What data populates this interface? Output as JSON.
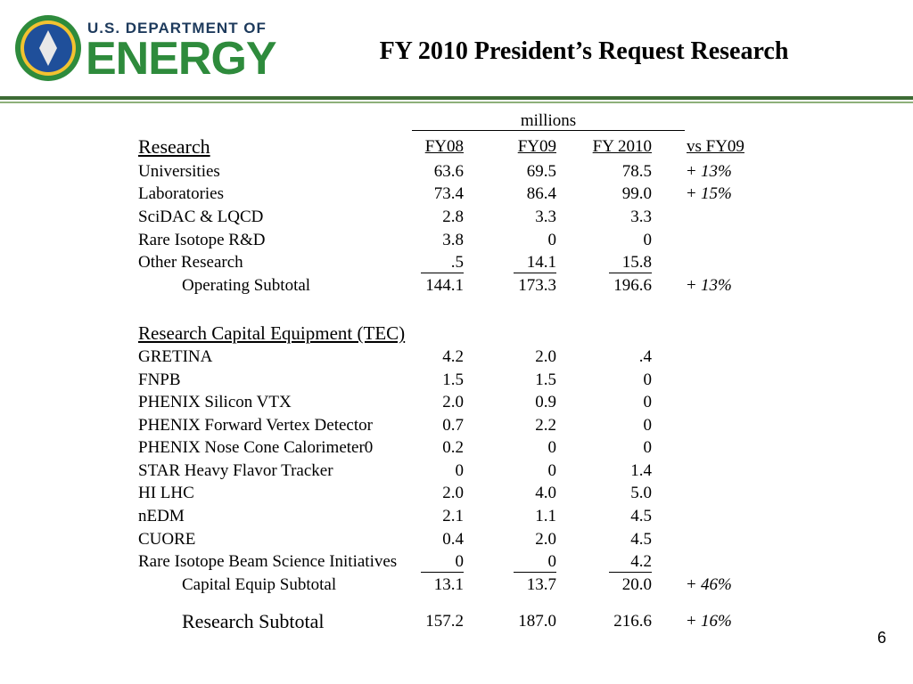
{
  "header": {
    "logo_top": "U.S. DEPARTMENT OF",
    "logo_main": "ENERGY",
    "title": "FY 2010 President’s Request Research"
  },
  "table": {
    "units": "millions",
    "columns": [
      "FY08",
      "FY09",
      "FY 2010",
      "vs FY09"
    ],
    "sections": [
      {
        "heading": "Research",
        "rows": [
          {
            "label": "Universities",
            "values": [
              "63.6",
              "69.5",
              "78.5"
            ],
            "change": {
              "sign": "+",
              "value": "13%"
            }
          },
          {
            "label": "Laboratories",
            "values": [
              "73.4",
              "86.4",
              "99.0"
            ],
            "change": {
              "sign": "+",
              "value": "15%"
            }
          },
          {
            "label": "SciDAC & LQCD",
            "values": [
              "2.8",
              "3.3",
              "3.3"
            ]
          },
          {
            "label": "Rare Isotope R&D",
            "values": [
              "3.8",
              "0",
              "0"
            ]
          },
          {
            "label": "Other Research",
            "values": [
              ".5",
              "14.1",
              "15.8"
            ]
          }
        ],
        "subtotal": {
          "label": "Operating Subtotal",
          "values": [
            "144.1",
            "173.3",
            "196.6"
          ],
          "change": {
            "sign": "+",
            "value": "13%"
          }
        }
      },
      {
        "heading": "Research Capital Equipment (TEC)",
        "rows": [
          {
            "label": "GRETINA",
            "values": [
              "4.2",
              "2.0",
              ".4"
            ]
          },
          {
            "label": "FNPB",
            "values": [
              "1.5",
              "1.5",
              "0"
            ]
          },
          {
            "label": "PHENIX Silicon VTX",
            "values": [
              "2.0",
              "0.9",
              "0"
            ]
          },
          {
            "label": "PHENIX Forward Vertex Detector",
            "values": [
              "0.7",
              "2.2",
              "0"
            ]
          },
          {
            "label": "PHENIX Nose Cone Calorimeter0",
            "values": [
              "0.2",
              "0",
              "0"
            ]
          },
          {
            "label": "STAR Heavy Flavor Tracker",
            "values": [
              "0",
              "0",
              "1.4"
            ]
          },
          {
            "label": "HI LHC",
            "values": [
              "2.0",
              "4.0",
              "5.0"
            ]
          },
          {
            "label": "nEDM",
            "values": [
              "2.1",
              "1.1",
              "4.5"
            ]
          },
          {
            "label": "CUORE",
            "values": [
              "0.4",
              "2.0",
              "4.5"
            ]
          },
          {
            "label": "Rare Isotope Beam Science Initiatives",
            "values": [
              "0",
              "0",
              "4.2"
            ]
          }
        ],
        "subtotal": {
          "label": "Capital Equip Subtotal",
          "values": [
            "13.1",
            "13.7",
            "20.0"
          ],
          "change": {
            "sign": "+",
            "value": "46%"
          }
        }
      }
    ],
    "total": {
      "label": "Research Subtotal",
      "values": [
        "157.2",
        "187.0",
        "216.6"
      ],
      "change": {
        "sign": "+",
        "value": "16%"
      }
    }
  },
  "page_number": "6"
}
